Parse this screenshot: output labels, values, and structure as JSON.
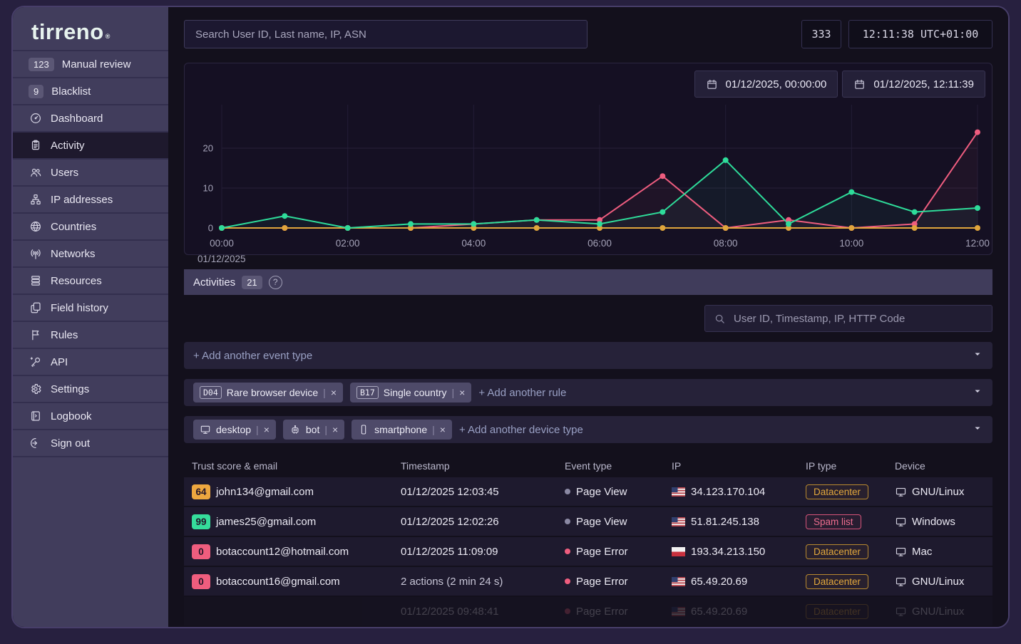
{
  "app": {
    "logo": "tirreno",
    "logo_mark": "®"
  },
  "topbar": {
    "search_placeholder": "Search User ID, Last name, IP, ASN",
    "counter": "333",
    "clock": "12:11:38 UTC+01:00"
  },
  "sidebar": {
    "items": [
      {
        "label": "Manual review",
        "badge": "123",
        "icon": null,
        "active": false
      },
      {
        "label": "Blacklist",
        "badge": "9",
        "icon": null,
        "active": false
      },
      {
        "label": "Dashboard",
        "icon": "dashboard-icon",
        "active": false
      },
      {
        "label": "Activity",
        "icon": "activity-icon",
        "active": true
      },
      {
        "label": "Users",
        "icon": "users-icon",
        "active": false
      },
      {
        "label": "IP addresses",
        "icon": "ip-addresses-icon",
        "active": false
      },
      {
        "label": "Countries",
        "icon": "globe-icon",
        "active": false
      },
      {
        "label": "Networks",
        "icon": "antenna-icon",
        "active": false
      },
      {
        "label": "Resources",
        "icon": "resources-icon",
        "active": false
      },
      {
        "label": "Field history",
        "icon": "field-history-icon",
        "active": false
      },
      {
        "label": "Rules",
        "icon": "flag-icon",
        "active": false
      },
      {
        "label": "API",
        "icon": "key-icon",
        "active": false
      },
      {
        "label": "Settings",
        "icon": "gear-icon",
        "active": false
      },
      {
        "label": "Logbook",
        "icon": "logbook-icon",
        "active": false
      },
      {
        "label": "Sign out",
        "icon": "sign-out-icon",
        "active": false
      }
    ]
  },
  "chart": {
    "date_from": "01/12/2025, 00:00:00",
    "date_to": "01/12/2025, 12:11:39"
  },
  "chart_data": {
    "type": "line",
    "x_hours": [
      "00:00",
      "01:00",
      "02:00",
      "03:00",
      "04:00",
      "05:00",
      "06:00",
      "07:00",
      "08:00",
      "09:00",
      "10:00",
      "11:00",
      "12:00"
    ],
    "x_tick_labels": [
      "00:00",
      "02:00",
      "04:00",
      "06:00",
      "08:00",
      "10:00",
      "12:00"
    ],
    "x_date_label": "01/12/2025",
    "yticks": [
      0,
      10,
      20
    ],
    "ylim": [
      0,
      27
    ],
    "grid": true,
    "legend": "none",
    "series": [
      {
        "name": "series-pink",
        "color": "#ef5d7f",
        "values": [
          0,
          0,
          0,
          0,
          1,
          2,
          2,
          13,
          0,
          2,
          0,
          1,
          24
        ]
      },
      {
        "name": "series-yellow",
        "color": "#e0a63c",
        "values": [
          0,
          0,
          0,
          0,
          0,
          0,
          0,
          0,
          0,
          0,
          0,
          0,
          0
        ]
      },
      {
        "name": "series-green",
        "color": "#2edc9a",
        "values": [
          0,
          3,
          0,
          1,
          1,
          2,
          1,
          4,
          17,
          1,
          9,
          4,
          5
        ]
      }
    ]
  },
  "activities": {
    "title": "Activities",
    "count": "21",
    "help": "?",
    "search_placeholder": "User ID, Timestamp, IP, HTTP Code",
    "event_type_placeholder": "+ Add another event type",
    "rules": [
      {
        "code": "D04",
        "label": "Rare browser device"
      },
      {
        "code": "B17",
        "label": "Single country"
      }
    ],
    "add_rule_label": "+ Add another rule",
    "devices": [
      {
        "icon": "desktop-icon",
        "label": "desktop"
      },
      {
        "icon": "bot-icon",
        "label": "bot"
      },
      {
        "icon": "smartphone-icon",
        "label": "smartphone"
      }
    ],
    "add_device_label": "+ Add another device type"
  },
  "table": {
    "columns": [
      "Trust score & email",
      "Timestamp",
      "Event type",
      "IP",
      "IP type",
      "Device"
    ],
    "rows": [
      {
        "score": "64",
        "score_color": "#eda73f",
        "email": "john134@gmail.com",
        "timestamp": "01/12/2025 12:03:45",
        "event": "Page View",
        "event_dot": "#8b89a3",
        "flag": "us",
        "ip": "34.123.170.104",
        "ip_type": "Datacenter",
        "ip_type_style": "warning",
        "device": "GNU/Linux",
        "faded": false
      },
      {
        "score": "99",
        "score_color": "#35dd9b",
        "email": "james25@gmail.com",
        "timestamp": "01/12/2025 12:02:26",
        "event": "Page View",
        "event_dot": "#8b89a3",
        "flag": "us",
        "ip": "51.81.245.138",
        "ip_type": "Spam list",
        "ip_type_style": "danger",
        "device": "Windows",
        "faded": false
      },
      {
        "score": "0",
        "score_color": "#ef5d7e",
        "email": "botaccount12@hotmail.com",
        "timestamp": "01/12/2025 11:09:09",
        "event": "Page Error",
        "event_dot": "#ef5d7e",
        "flag": "pl",
        "ip": "193.34.213.150",
        "ip_type": "Datacenter",
        "ip_type_style": "warning",
        "device": "Mac",
        "faded": false
      },
      {
        "score": "0",
        "score_color": "#ef5d7e",
        "email": "botaccount16@gmail.com",
        "timestamp": "2 actions (2 min 24 s)",
        "event": "Page Error",
        "event_dot": "#ef5d7e",
        "flag": "us",
        "ip": "65.49.20.69",
        "ip_type": "Datacenter",
        "ip_type_style": "warning",
        "device": "GNU/Linux",
        "faded": false
      },
      {
        "score": "",
        "score_color": "",
        "email": "",
        "timestamp": "01/12/2025 09:48:41",
        "event": "Page Error",
        "event_dot": "#ef5d7e",
        "flag": "us",
        "ip": "65.49.20.69",
        "ip_type": "Datacenter",
        "ip_type_style": "warning",
        "device": "GNU/Linux",
        "faded": true
      }
    ]
  }
}
